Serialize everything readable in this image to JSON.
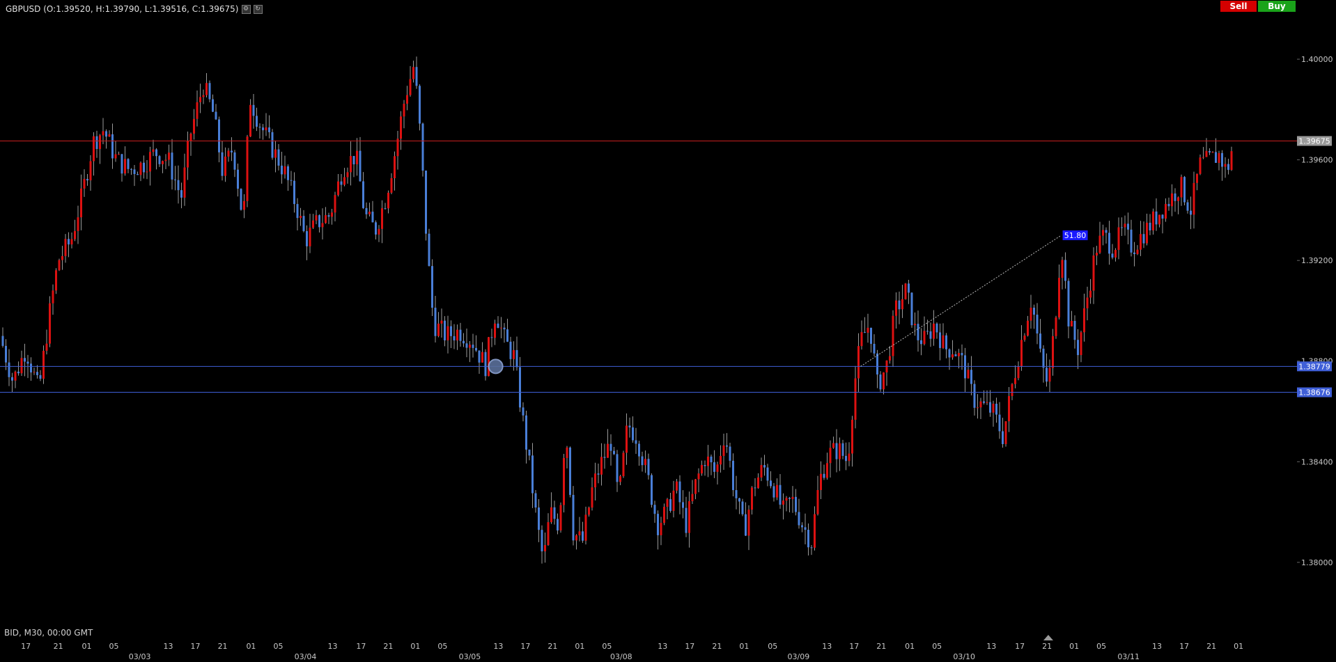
{
  "header": {
    "symbol": "GBPUSD",
    "ohlc_text": "(O:1.39520, H:1.39790, L:1.39516, C:1.39675)",
    "icons": [
      "settings-icon",
      "refresh-icon"
    ]
  },
  "trade_buttons": {
    "sell_label": "Sell",
    "buy_label": "Buy"
  },
  "footer": {
    "info": "BID, M30, 00:00 GMT"
  },
  "colors": {
    "bull": "#dd1111",
    "bear": "#4a7fd8",
    "current_line": "#c81e1e",
    "level_line": "#3f5fd8",
    "grid_text": "#c8c8c8"
  },
  "chart_data": {
    "type": "candlestick",
    "symbol": "GBPUSD",
    "timeframe": "M30",
    "yaxis": {
      "ticks": [
        1.4,
        1.396,
        1.392,
        1.388,
        1.384,
        1.38
      ],
      "labels": [
        "1.40000",
        "1.39600",
        "1.39200",
        "1.38800",
        "1.38400",
        "1.38000"
      ],
      "range": [
        1.37745,
        1.4018
      ]
    },
    "xaxis": {
      "hour_ticks": [
        {
          "label": "17",
          "pos": 0.02
        },
        {
          "label": "21",
          "pos": 0.045
        },
        {
          "label": "01",
          "pos": 0.067
        },
        {
          "label": "05",
          "pos": 0.088
        },
        {
          "label": "13",
          "pos": 0.13
        },
        {
          "label": "17",
          "pos": 0.151
        },
        {
          "label": "21",
          "pos": 0.172
        },
        {
          "label": "01",
          "pos": 0.194
        },
        {
          "label": "05",
          "pos": 0.215
        },
        {
          "label": "13",
          "pos": 0.257
        },
        {
          "label": "17",
          "pos": 0.279
        },
        {
          "label": "21",
          "pos": 0.3
        },
        {
          "label": "01",
          "pos": 0.321
        },
        {
          "label": "05",
          "pos": 0.342
        },
        {
          "label": "13",
          "pos": 0.385
        },
        {
          "label": "17",
          "pos": 0.406
        },
        {
          "label": "21",
          "pos": 0.427
        },
        {
          "label": "01",
          "pos": 0.448
        },
        {
          "label": "05",
          "pos": 0.469
        },
        {
          "label": "13",
          "pos": 0.512
        },
        {
          "label": "17",
          "pos": 0.533
        },
        {
          "label": "21",
          "pos": 0.554
        },
        {
          "label": "01",
          "pos": 0.575
        },
        {
          "label": "05",
          "pos": 0.597
        },
        {
          "label": "13",
          "pos": 0.639
        },
        {
          "label": "17",
          "pos": 0.66
        },
        {
          "label": "21",
          "pos": 0.681
        },
        {
          "label": "01",
          "pos": 0.703
        },
        {
          "label": "05",
          "pos": 0.724
        },
        {
          "label": "13",
          "pos": 0.766
        },
        {
          "label": "17",
          "pos": 0.788
        },
        {
          "label": "21",
          "pos": 0.809
        },
        {
          "label": "01",
          "pos": 0.83
        },
        {
          "label": "05",
          "pos": 0.851
        },
        {
          "label": "13",
          "pos": 0.894
        },
        {
          "label": "17",
          "pos": 0.915
        },
        {
          "label": "21",
          "pos": 0.936
        },
        {
          "label": "01",
          "pos": 0.957
        }
      ],
      "date_labels": [
        {
          "label": "03/03",
          "pos": 0.108
        },
        {
          "label": "03/04",
          "pos": 0.236
        },
        {
          "label": "03/05",
          "pos": 0.363
        },
        {
          "label": "03/08",
          "pos": 0.48
        },
        {
          "label": "03/09",
          "pos": 0.617
        },
        {
          "label": "03/10",
          "pos": 0.745
        },
        {
          "label": "03/11",
          "pos": 0.872
        }
      ]
    },
    "current_price": {
      "value": 1.39675,
      "label": "1.39675"
    },
    "horizontal_levels": [
      {
        "value": 1.38779,
        "label": "1.38779"
      },
      {
        "value": 1.38676,
        "label": "1.38676"
      }
    ],
    "trendline": {
      "from": {
        "pos": 0.665,
        "price": 1.38779
      },
      "to": {
        "pos": 0.82,
        "price": 1.393
      },
      "label": "51.80"
    },
    "anchor_marker": {
      "pos": 0.383,
      "price": 1.38779
    },
    "price_path": [
      {
        "pos": 0.0,
        "price": 1.389
      },
      {
        "pos": 0.01,
        "price": 1.3872
      },
      {
        "pos": 0.02,
        "price": 1.3885
      },
      {
        "pos": 0.03,
        "price": 1.3868
      },
      {
        "pos": 0.038,
        "price": 1.3898
      },
      {
        "pos": 0.045,
        "price": 1.392
      },
      {
        "pos": 0.055,
        "price": 1.3928
      },
      {
        "pos": 0.063,
        "price": 1.3945
      },
      {
        "pos": 0.072,
        "price": 1.3967
      },
      {
        "pos": 0.08,
        "price": 1.3972
      },
      {
        "pos": 0.09,
        "price": 1.396
      },
      {
        "pos": 0.1,
        "price": 1.3956
      },
      {
        "pos": 0.11,
        "price": 1.3958
      },
      {
        "pos": 0.12,
        "price": 1.3963
      },
      {
        "pos": 0.13,
        "price": 1.396
      },
      {
        "pos": 0.14,
        "price": 1.3945
      },
      {
        "pos": 0.147,
        "price": 1.397
      },
      {
        "pos": 0.157,
        "price": 1.399
      },
      {
        "pos": 0.165,
        "price": 1.3978
      },
      {
        "pos": 0.172,
        "price": 1.3955
      },
      {
        "pos": 0.18,
        "price": 1.3965
      },
      {
        "pos": 0.188,
        "price": 1.3935
      },
      {
        "pos": 0.193,
        "price": 1.3985
      },
      {
        "pos": 0.2,
        "price": 1.3975
      },
      {
        "pos": 0.21,
        "price": 1.3965
      },
      {
        "pos": 0.22,
        "price": 1.3955
      },
      {
        "pos": 0.23,
        "price": 1.394
      },
      {
        "pos": 0.236,
        "price": 1.3928
      },
      {
        "pos": 0.245,
        "price": 1.3935
      },
      {
        "pos": 0.255,
        "price": 1.3938
      },
      {
        "pos": 0.265,
        "price": 1.3957
      },
      {
        "pos": 0.275,
        "price": 1.3962
      },
      {
        "pos": 0.282,
        "price": 1.3938
      },
      {
        "pos": 0.29,
        "price": 1.3932
      },
      {
        "pos": 0.298,
        "price": 1.3945
      },
      {
        "pos": 0.306,
        "price": 1.3965
      },
      {
        "pos": 0.313,
        "price": 1.3985
      },
      {
        "pos": 0.32,
        "price": 1.3998
      },
      {
        "pos": 0.325,
        "price": 1.3968
      },
      {
        "pos": 0.33,
        "price": 1.3925
      },
      {
        "pos": 0.335,
        "price": 1.3895
      },
      {
        "pos": 0.345,
        "price": 1.389
      },
      {
        "pos": 0.355,
        "price": 1.3892
      },
      {
        "pos": 0.365,
        "price": 1.3888
      },
      {
        "pos": 0.375,
        "price": 1.3878
      },
      {
        "pos": 0.383,
        "price": 1.39
      },
      {
        "pos": 0.39,
        "price": 1.3888
      },
      {
        "pos": 0.397,
        "price": 1.3882
      },
      {
        "pos": 0.403,
        "price": 1.386
      },
      {
        "pos": 0.41,
        "price": 1.3835
      },
      {
        "pos": 0.415,
        "price": 1.3815
      },
      {
        "pos": 0.42,
        "price": 1.38
      },
      {
        "pos": 0.425,
        "price": 1.382
      },
      {
        "pos": 0.432,
        "price": 1.3815
      },
      {
        "pos": 0.437,
        "price": 1.3855
      },
      {
        "pos": 0.443,
        "price": 1.3812
      },
      {
        "pos": 0.45,
        "price": 1.3808
      },
      {
        "pos": 0.458,
        "price": 1.383
      },
      {
        "pos": 0.465,
        "price": 1.384
      },
      {
        "pos": 0.472,
        "price": 1.3848
      },
      {
        "pos": 0.478,
        "price": 1.3825
      },
      {
        "pos": 0.485,
        "price": 1.3855
      },
      {
        "pos": 0.492,
        "price": 1.385
      },
      {
        "pos": 0.5,
        "price": 1.3835
      },
      {
        "pos": 0.508,
        "price": 1.3815
      },
      {
        "pos": 0.515,
        "price": 1.382
      },
      {
        "pos": 0.522,
        "price": 1.383
      },
      {
        "pos": 0.53,
        "price": 1.3815
      },
      {
        "pos": 0.538,
        "price": 1.3832
      },
      {
        "pos": 0.545,
        "price": 1.3842
      },
      {
        "pos": 0.553,
        "price": 1.3835
      },
      {
        "pos": 0.56,
        "price": 1.3852
      },
      {
        "pos": 0.567,
        "price": 1.383
      },
      {
        "pos": 0.575,
        "price": 1.3812
      },
      {
        "pos": 0.582,
        "price": 1.383
      },
      {
        "pos": 0.59,
        "price": 1.3838
      },
      {
        "pos": 0.598,
        "price": 1.383
      },
      {
        "pos": 0.605,
        "price": 1.382
      },
      {
        "pos": 0.612,
        "price": 1.3825
      },
      {
        "pos": 0.62,
        "price": 1.3815
      },
      {
        "pos": 0.627,
        "price": 1.3808
      },
      {
        "pos": 0.633,
        "price": 1.3832
      },
      {
        "pos": 0.64,
        "price": 1.3843
      },
      {
        "pos": 0.648,
        "price": 1.3845
      },
      {
        "pos": 0.655,
        "price": 1.384
      },
      {
        "pos": 0.66,
        "price": 1.387
      },
      {
        "pos": 0.665,
        "price": 1.3888
      },
      {
        "pos": 0.672,
        "price": 1.3895
      },
      {
        "pos": 0.678,
        "price": 1.387
      },
      {
        "pos": 0.685,
        "price": 1.3878
      },
      {
        "pos": 0.692,
        "price": 1.39
      },
      {
        "pos": 0.7,
        "price": 1.3908
      },
      {
        "pos": 0.708,
        "price": 1.389
      },
      {
        "pos": 0.715,
        "price": 1.3888
      },
      {
        "pos": 0.722,
        "price": 1.3895
      },
      {
        "pos": 0.73,
        "price": 1.3885
      },
      {
        "pos": 0.737,
        "price": 1.3885
      },
      {
        "pos": 0.745,
        "price": 1.3878
      },
      {
        "pos": 0.752,
        "price": 1.3865
      },
      {
        "pos": 0.76,
        "price": 1.3862
      },
      {
        "pos": 0.767,
        "price": 1.386
      },
      {
        "pos": 0.775,
        "price": 1.385
      },
      {
        "pos": 0.782,
        "price": 1.387
      },
      {
        "pos": 0.79,
        "price": 1.389
      },
      {
        "pos": 0.797,
        "price": 1.3905
      },
      {
        "pos": 0.805,
        "price": 1.3878
      },
      {
        "pos": 0.81,
        "price": 1.387
      },
      {
        "pos": 0.815,
        "price": 1.3895
      },
      {
        "pos": 0.82,
        "price": 1.3928
      },
      {
        "pos": 0.826,
        "price": 1.3895
      },
      {
        "pos": 0.833,
        "price": 1.3885
      },
      {
        "pos": 0.84,
        "price": 1.3905
      },
      {
        "pos": 0.847,
        "price": 1.3925
      },
      {
        "pos": 0.853,
        "price": 1.393
      },
      {
        "pos": 0.86,
        "price": 1.3925
      },
      {
        "pos": 0.868,
        "price": 1.3932
      },
      {
        "pos": 0.875,
        "price": 1.3925
      },
      {
        "pos": 0.882,
        "price": 1.393
      },
      {
        "pos": 0.89,
        "price": 1.3935
      },
      {
        "pos": 0.897,
        "price": 1.394
      },
      {
        "pos": 0.905,
        "price": 1.3945
      },
      {
        "pos": 0.912,
        "price": 1.395
      },
      {
        "pos": 0.92,
        "price": 1.394
      },
      {
        "pos": 0.927,
        "price": 1.3958
      },
      {
        "pos": 0.935,
        "price": 1.396
      },
      {
        "pos": 0.942,
        "price": 1.3962
      },
      {
        "pos": 0.948,
        "price": 1.3955
      },
      {
        "pos": 0.953,
        "price": 1.3967
      }
    ]
  }
}
